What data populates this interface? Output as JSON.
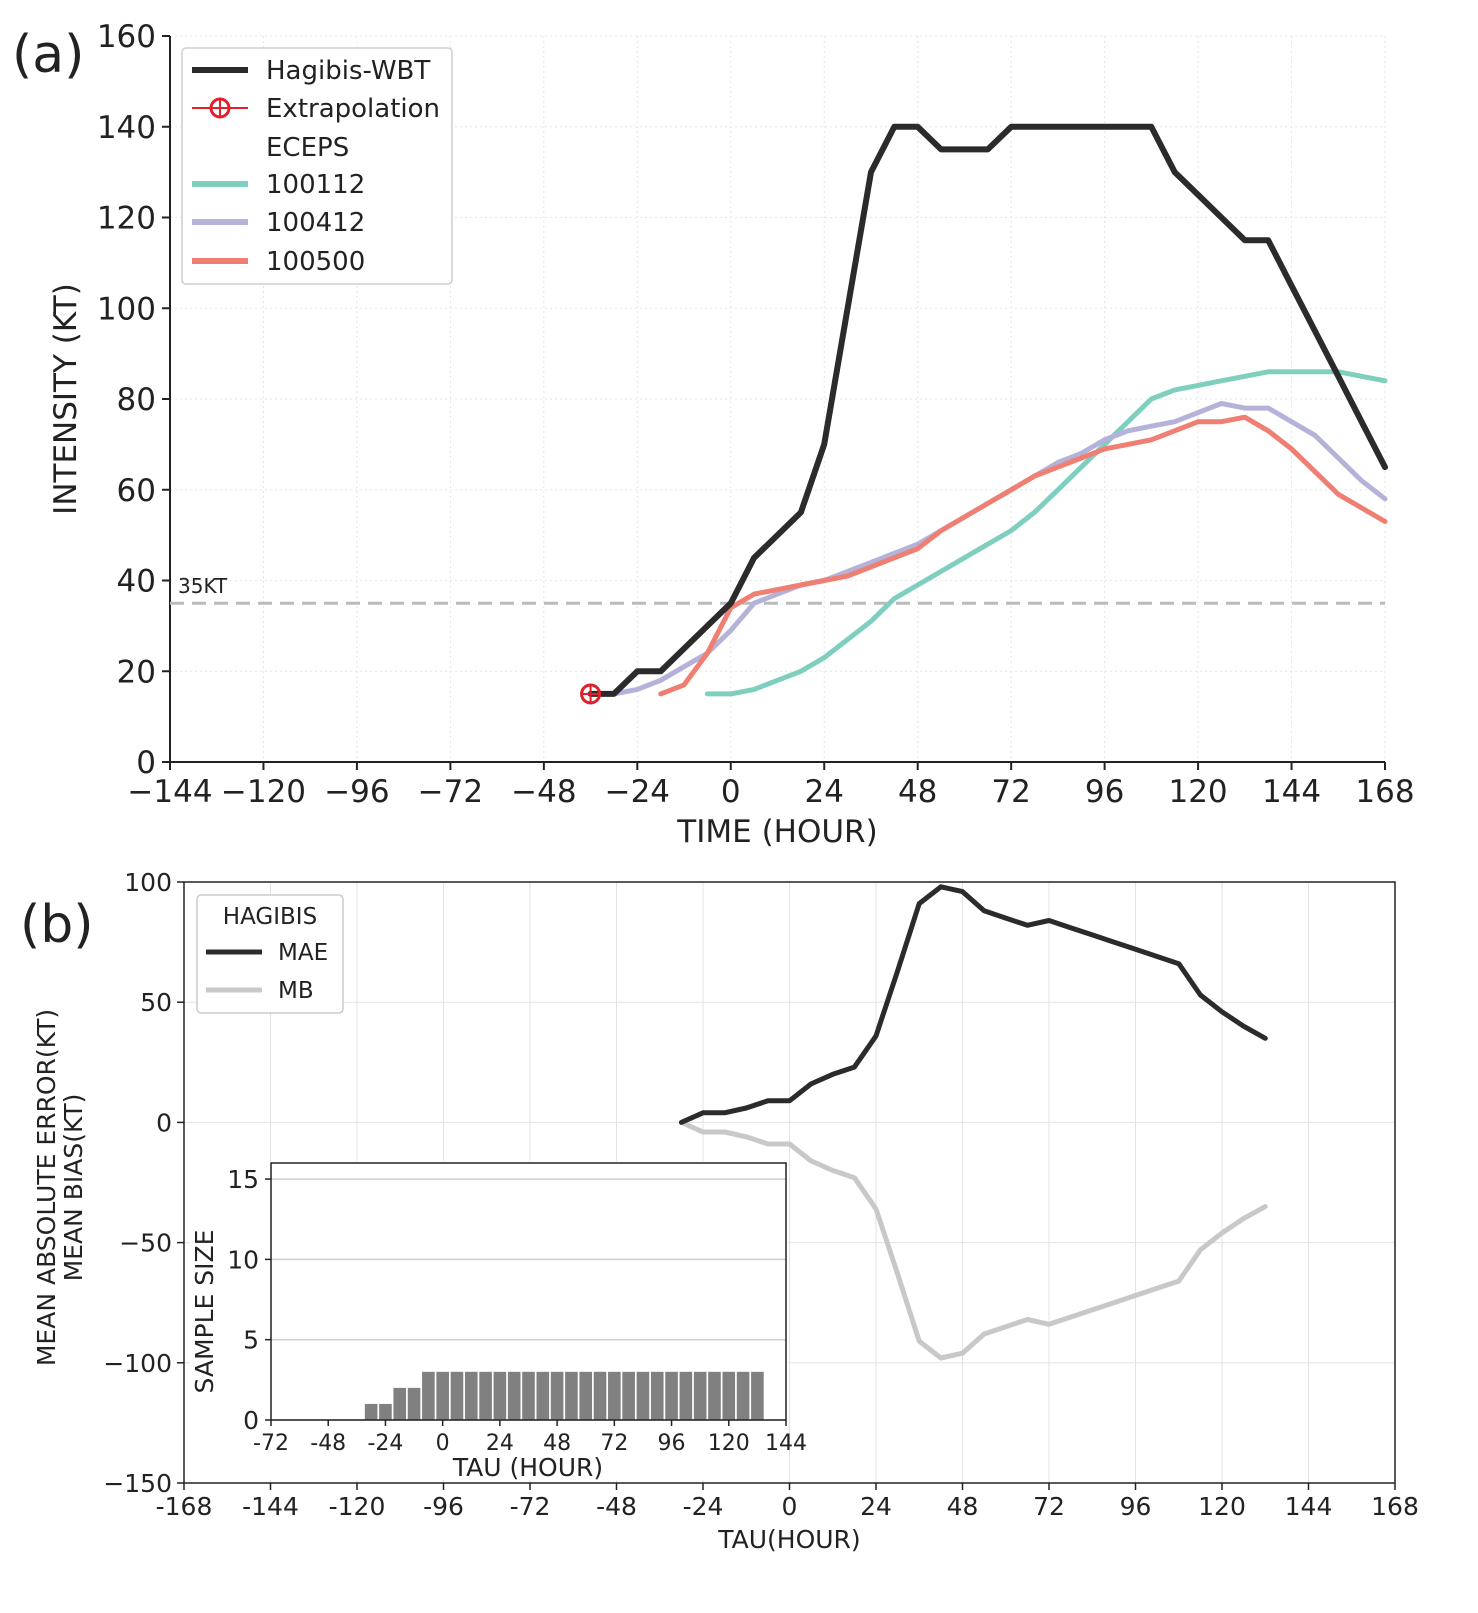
{
  "panel_a_label": "(a)",
  "panel_b_label": "(b)",
  "chart_data": [
    {
      "panel": "(a)",
      "type": "line",
      "xlabel": "TIME (HOUR)",
      "ylabel": "INTENSITY (KT)",
      "xlim": [
        -144,
        168
      ],
      "ylim": [
        0,
        160
      ],
      "xticks": [
        -144,
        -120,
        -96,
        -72,
        -48,
        -24,
        0,
        24,
        48,
        72,
        96,
        120,
        144,
        168
      ],
      "xtick_labels": [
        "−144",
        "−120",
        "−96",
        "−72",
        "−48",
        "−24",
        "0",
        "24",
        "48",
        "72",
        "96",
        "120",
        "144",
        "168"
      ],
      "yticks": [
        0,
        20,
        40,
        60,
        80,
        100,
        120,
        140,
        160
      ],
      "ytick_labels": [
        "0",
        "20",
        "40",
        "60",
        "80",
        "100",
        "120",
        "140",
        "160"
      ],
      "grid": true,
      "legend_position": "top-left",
      "legend_header": "ECEPS",
      "reference_line": {
        "y": 35,
        "label": "35KT",
        "color": "#bbbbbb"
      },
      "series": [
        {
          "name": "Hagibis-WBT",
          "color": "#2b2b2b",
          "x": [
            -36,
            -30,
            -24,
            -18,
            -12,
            -6,
            0,
            6,
            12,
            18,
            24,
            30,
            36,
            42,
            48,
            54,
            60,
            66,
            72,
            78,
            84,
            90,
            96,
            102,
            108,
            114,
            120,
            126,
            132,
            138,
            144,
            150,
            156,
            162,
            168
          ],
          "y": [
            15,
            15,
            20,
            20,
            25,
            30,
            35,
            45,
            50,
            55,
            70,
            100,
            130,
            140,
            140,
            135,
            135,
            135,
            140,
            140,
            140,
            140,
            140,
            140,
            140,
            130,
            125,
            120,
            115,
            115,
            105,
            95,
            85,
            75,
            65
          ]
        },
        {
          "name": "100112",
          "color": "#7fcfbf",
          "x": [
            -6,
            0,
            6,
            12,
            18,
            24,
            30,
            36,
            42,
            48,
            54,
            60,
            66,
            72,
            78,
            84,
            90,
            96,
            102,
            108,
            114,
            120,
            126,
            132,
            138,
            144,
            150,
            156,
            162,
            168
          ],
          "y": [
            15,
            15,
            16,
            18,
            20,
            23,
            27,
            31,
            36,
            39,
            42,
            45,
            48,
            51,
            55,
            60,
            65,
            70,
            75,
            80,
            82,
            83,
            84,
            85,
            86,
            86,
            86,
            86,
            85,
            84
          ]
        },
        {
          "name": "100412",
          "color": "#b4b2d8",
          "x": [
            -30,
            -24,
            -18,
            -12,
            -6,
            0,
            6,
            12,
            18,
            24,
            30,
            36,
            42,
            48,
            54,
            60,
            66,
            72,
            78,
            84,
            90,
            96,
            102,
            108,
            114,
            120,
            126,
            132,
            138,
            144,
            150,
            156,
            162,
            168
          ],
          "y": [
            15,
            16,
            18,
            21,
            24,
            29,
            35,
            37,
            39,
            40,
            42,
            44,
            46,
            48,
            51,
            54,
            57,
            60,
            63,
            66,
            68,
            71,
            73,
            74,
            75,
            77,
            79,
            78,
            78,
            75,
            72,
            67,
            62,
            58
          ]
        },
        {
          "name": "100500",
          "color": "#ef7f72",
          "x": [
            -18,
            -12,
            -6,
            0,
            6,
            12,
            18,
            24,
            30,
            36,
            42,
            48,
            54,
            60,
            66,
            72,
            78,
            84,
            90,
            96,
            102,
            108,
            114,
            120,
            126,
            132,
            138,
            144,
            150,
            156,
            162,
            168
          ],
          "y": [
            15,
            17,
            24,
            34,
            37,
            38,
            39,
            40,
            41,
            43,
            45,
            47,
            51,
            54,
            57,
            60,
            63,
            65,
            67,
            69,
            70,
            71,
            73,
            75,
            75,
            76,
            73,
            69,
            64,
            59,
            56,
            53
          ]
        }
      ],
      "extrapolation": {
        "name": "Extrapolation",
        "x": -36,
        "y": 15,
        "color": "#e0202a"
      }
    },
    {
      "panel": "(b)",
      "type": "line",
      "xlabel": "TAU(HOUR)",
      "ylabel_lines": [
        "MEAN ABSOLUTE ERROR(KT)",
        "MEAN BIAS(KT)"
      ],
      "xlim": [
        -168,
        168
      ],
      "ylim": [
        -150,
        100
      ],
      "xticks": [
        -168,
        -144,
        -120,
        -96,
        -72,
        -48,
        -24,
        0,
        24,
        48,
        72,
        96,
        120,
        144,
        168
      ],
      "xtick_labels": [
        "-168",
        "-144",
        "-120",
        "-96",
        "-72",
        "-48",
        "-24",
        "0",
        "24",
        "48",
        "72",
        "96",
        "120",
        "144",
        "168"
      ],
      "yticks": [
        100,
        50,
        0,
        -50,
        -100,
        -150
      ],
      "ytick_labels": [
        "100",
        "50",
        "0",
        "−50",
        "−100",
        "−150"
      ],
      "grid": true,
      "legend_position": "top-left",
      "legend_title": "HAGIBIS",
      "series": [
        {
          "name": "MAE",
          "color": "#2b2b2b",
          "x": [
            -30,
            -24,
            -18,
            -12,
            -6,
            0,
            6,
            12,
            18,
            24,
            30,
            36,
            42,
            48,
            54,
            60,
            66,
            72,
            78,
            84,
            90,
            96,
            102,
            108,
            114,
            120,
            126,
            132
          ],
          "y": [
            0,
            4,
            4,
            6,
            9,
            9,
            16,
            20,
            23,
            36,
            63,
            91,
            98,
            96,
            88,
            85,
            82,
            84,
            81,
            78,
            75,
            72,
            69,
            66,
            53,
            46,
            40,
            35
          ]
        },
        {
          "name": "MB",
          "color": "#c8c8c8",
          "x": [
            -30,
            -24,
            -18,
            -12,
            -6,
            0,
            6,
            12,
            18,
            24,
            30,
            36,
            42,
            48,
            54,
            60,
            66,
            72,
            78,
            84,
            90,
            96,
            102,
            108,
            114,
            120,
            126,
            132
          ],
          "y": [
            0,
            -4,
            -4,
            -6,
            -9,
            -9,
            -16,
            -20,
            -23,
            -36,
            -63,
            -91,
            -98,
            -96,
            -88,
            -85,
            -82,
            -84,
            -81,
            -78,
            -75,
            -72,
            -69,
            -66,
            -53,
            -46,
            -40,
            -35
          ]
        }
      ]
    },
    {
      "panel": "(b) inset",
      "type": "bar",
      "xlabel": "TAU (HOUR)",
      "ylabel": "SAMPLE SIZE",
      "xlim": [
        -72,
        144
      ],
      "ylim": [
        0,
        16
      ],
      "xticks": [
        -72,
        -48,
        -24,
        0,
        24,
        48,
        72,
        96,
        120,
        144
      ],
      "xtick_labels": [
        "-72",
        "-48",
        "-24",
        "0",
        "24",
        "48",
        "72",
        "96",
        "120",
        "144"
      ],
      "yticks": [
        0,
        5,
        10,
        15
      ],
      "ytick_labels": [
        "0",
        "5",
        "10",
        "15"
      ],
      "color": "#808080",
      "x": [
        -30,
        -24,
        -18,
        -12,
        -6,
        0,
        6,
        12,
        18,
        24,
        30,
        36,
        42,
        48,
        54,
        60,
        66,
        72,
        78,
        84,
        90,
        96,
        102,
        108,
        114,
        120,
        126,
        132
      ],
      "values": [
        1,
        1,
        2,
        2,
        3,
        3,
        3,
        3,
        3,
        3,
        3,
        3,
        3,
        3,
        3,
        3,
        3,
        3,
        3,
        3,
        3,
        3,
        3,
        3,
        3,
        3,
        3,
        3
      ]
    }
  ]
}
